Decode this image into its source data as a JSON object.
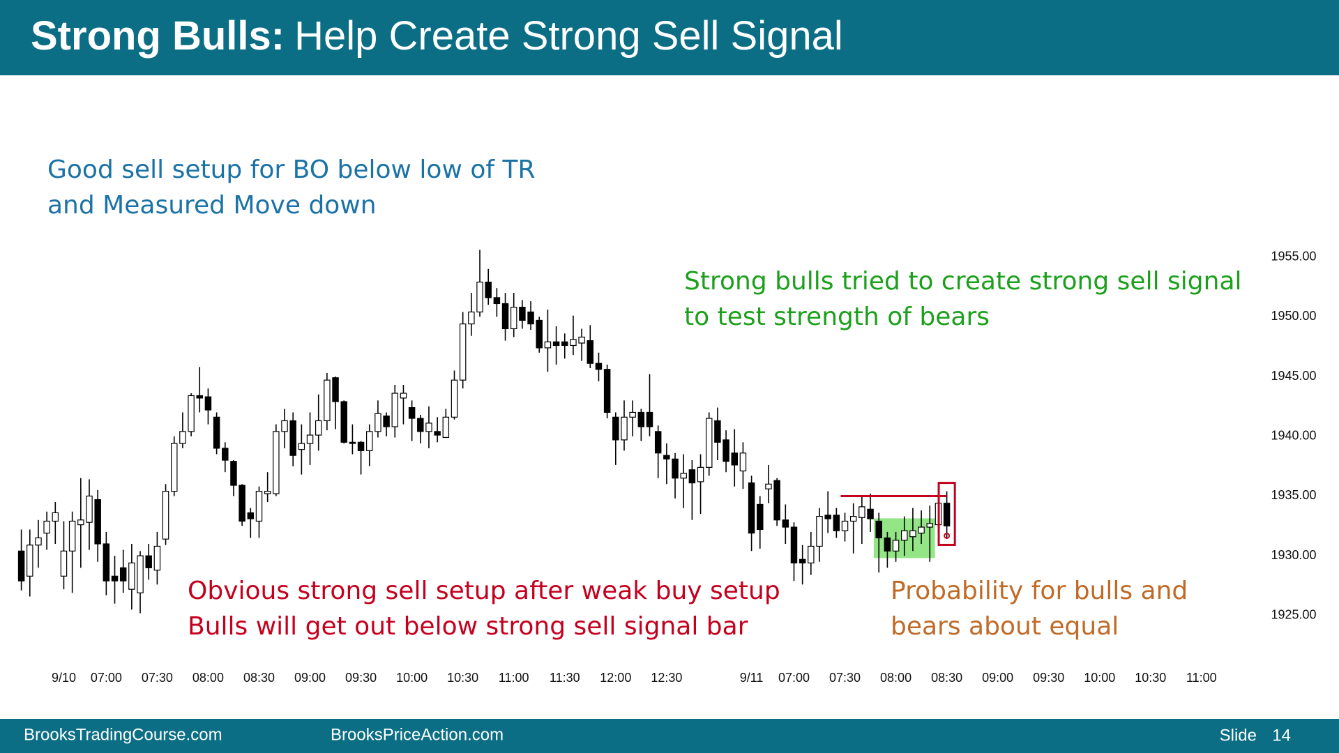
{
  "header": {
    "title_bold": "Strong Bulls:",
    "title": "Help Create Strong Sell Signal"
  },
  "footer": {
    "left": "BrooksTradingCourse.com",
    "center": "BrooksPriceAction.com",
    "slide_label": "Slide",
    "slide_number": "14"
  },
  "chart_data": {
    "type": "candlestick",
    "up_color": "#ffffff",
    "down_color": "#000000",
    "edge_color": "#000000",
    "x": [
      0,
      1,
      2,
      3,
      4,
      5,
      6,
      7,
      8,
      9,
      10,
      11,
      12,
      13,
      14,
      15,
      16,
      17,
      18,
      19,
      20,
      21,
      22,
      23,
      24,
      25,
      26,
      27,
      28,
      29,
      30,
      31,
      32,
      33,
      34,
      35,
      36,
      37,
      38,
      39,
      40,
      41,
      42,
      43,
      44,
      45,
      46,
      47,
      48,
      49,
      50,
      51,
      52,
      53,
      54,
      55,
      56,
      57,
      58,
      59,
      60,
      61,
      62,
      63,
      64,
      65,
      66,
      67,
      68,
      69,
      70,
      71,
      72,
      73,
      74,
      75,
      76,
      77,
      78,
      79,
      80,
      81,
      82,
      83,
      84,
      85,
      86,
      87,
      88,
      89,
      90,
      91,
      92,
      93,
      94,
      95,
      96,
      97,
      98,
      99,
      100,
      101,
      102,
      103,
      104,
      105,
      106,
      107,
      108,
      109
    ],
    "open": [
      1930.4,
      1928.3,
      1930.9,
      1931.9,
      1932.9,
      1928.3,
      1930.4,
      1932.6,
      1932.8,
      1934.7,
      1931,
      1928.3,
      1929,
      1927.2,
      1926.9,
      1930,
      1928.8,
      1931.4,
      1935.4,
      1939.4,
      1940.4,
      1943.4,
      1943.3,
      1941.6,
      1939,
      1937.9,
      1935.9,
      1933.6,
      1932.9,
      1935.2,
      1935.2,
      1940.4,
      1941.3,
      1938.9,
      1939.4,
      1940.1,
      1941.3,
      1944.9,
      1942.9,
      1939.5,
      1939.5,
      1938.8,
      1940.4,
      1941.7,
      1940.8,
      1943.2,
      1942.4,
      1941.5,
      1940.4,
      1940.4,
      1939.9,
      1941.6,
      1944.7,
      1949.4,
      1950.4,
      1952.9,
      1951.6,
      1951.1,
      1949,
      1950.8,
      1950.4,
      1949.7,
      1947.4,
      1947.9,
      1947.9,
      1947.6,
      1947.8,
      1948,
      1946.1,
      1945.6,
      1941.6,
      1939.7,
      1941.6,
      1942,
      1942,
      1940.4,
      1938.4,
      1938.1,
      1936.5,
      1937.2,
      1936.2,
      1937.4,
      1941.3,
      1939.7,
      1938.6,
      1937.1,
      1936.1,
      1934.3,
      1935.6,
      1936.3,
      1933,
      1932.4,
      1929.7,
      1929.4,
      1930.8,
      1933.4,
      1933.4,
      1932.1,
      1932.9,
      1933.2,
      1933.9,
      1932.9,
      1931.5,
      1930.4,
      1931.3,
      1931.6,
      1931.9,
      1932.4,
      1932.6,
      1934.4
    ],
    "high": [
      1932.2,
      1932.2,
      1933,
      1933.7,
      1934.5,
      1932.9,
      1933.7,
      1936.5,
      1936.4,
      1935.5,
      1932,
      1930,
      1930.5,
      1931,
      1930.4,
      1931,
      1932,
      1936,
      1940,
      1942,
      1943.6,
      1945.8,
      1944,
      1942,
      1939.5,
      1938,
      1936,
      1934,
      1935.8,
      1937,
      1941,
      1942.3,
      1942,
      1941,
      1942,
      1943.5,
      1945.3,
      1945,
      1943,
      1941,
      1939.6,
      1941,
      1943,
      1942,
      1944.3,
      1944.3,
      1943,
      1941.8,
      1942.5,
      1941.6,
      1942.3,
      1945.5,
      1950.4,
      1952,
      1955.6,
      1954,
      1952.4,
      1952,
      1952,
      1951.4,
      1951.3,
      1950,
      1950.6,
      1949.2,
      1948.6,
      1950.1,
      1949,
      1949.3,
      1947,
      1946,
      1942,
      1943,
      1943,
      1942.3,
      1945.2,
      1940.9,
      1939.4,
      1938.6,
      1938.5,
      1938,
      1938.5,
      1942,
      1942.4,
      1940.5,
      1940.6,
      1939.5,
      1936.7,
      1935,
      1937.6,
      1936.5,
      1934.3,
      1932.8,
      1930.9,
      1932,
      1934,
      1935.4,
      1934,
      1933.6,
      1934.4,
      1935,
      1935.2,
      1933.6,
      1932,
      1932,
      1933.3,
      1934,
      1933.8,
      1934.2,
      1935,
      1935.4
    ],
    "low": [
      1927.1,
      1926.6,
      1929,
      1930.5,
      1931,
      1927.2,
      1926.9,
      1929,
      1930.5,
      1929.5,
      1926.7,
      1926,
      1926.9,
      1925.5,
      1925.2,
      1928,
      1927.6,
      1930.9,
      1935,
      1939,
      1940,
      1942,
      1941,
      1938.5,
      1937,
      1935,
      1932.5,
      1931.5,
      1931.5,
      1934.5,
      1935,
      1939,
      1937.5,
      1936.8,
      1937.6,
      1938.8,
      1940.5,
      1940.6,
      1939.4,
      1938.5,
      1936.8,
      1937.5,
      1939.9,
      1940,
      1939.9,
      1941,
      1939.6,
      1939.4,
      1939,
      1939.5,
      1939.9,
      1941.4,
      1944,
      1948.4,
      1950,
      1951,
      1950,
      1948,
      1948.3,
      1949,
      1948.9,
      1947,
      1945.4,
      1946,
      1946.5,
      1946.8,
      1946.3,
      1945.7,
      1944.6,
      1941.5,
      1937.6,
      1938.8,
      1940,
      1939.6,
      1940,
      1936.5,
      1936,
      1934.8,
      1934,
      1933,
      1933.5,
      1936.7,
      1938,
      1937,
      1935.8,
      1935.6,
      1930.4,
      1930.6,
      1934.4,
      1932.5,
      1931,
      1927.9,
      1927.6,
      1928.4,
      1929.5,
      1931.9,
      1931.5,
      1931.2,
      1930.2,
      1931,
      1932,
      1928.6,
      1929,
      1929.5,
      1930,
      1930.4,
      1931,
      1929.5,
      1931.8,
      1931.5
    ],
    "close": [
      1927.9,
      1930.9,
      1931.5,
      1932.9,
      1933.6,
      1930.4,
      1932.9,
      1933,
      1935,
      1931,
      1927.9,
      1927.9,
      1927.9,
      1929.4,
      1930,
      1929,
      1930.8,
      1935.4,
      1939.4,
      1940.4,
      1943.4,
      1943.2,
      1942.2,
      1939,
      1938,
      1935.9,
      1932.9,
      1933.1,
      1935.4,
      1935.4,
      1940.4,
      1941.3,
      1938.4,
      1939.4,
      1940.1,
      1941.3,
      1944.7,
      1942.9,
      1939.5,
      1939.4,
      1938.8,
      1940.4,
      1941.9,
      1940.8,
      1943.6,
      1943.6,
      1941.5,
      1940.4,
      1941.1,
      1940.1,
      1941.6,
      1944.7,
      1949.4,
      1950.4,
      1952.9,
      1951.6,
      1951.1,
      1949,
      1950.8,
      1949.7,
      1949.4,
      1947.4,
      1947.9,
      1947.6,
      1947.6,
      1948.1,
      1948.3,
      1946.1,
      1945.6,
      1942,
      1939.7,
      1941.6,
      1942,
      1940.8,
      1940.8,
      1938.6,
      1938.1,
      1936.5,
      1936.9,
      1936.1,
      1937.4,
      1941.5,
      1939.5,
      1937.9,
      1937.6,
      1938.6,
      1931.9,
      1932.2,
      1936,
      1933,
      1932.4,
      1929.4,
      1929.4,
      1930.8,
      1933.3,
      1933.1,
      1932.1,
      1932.9,
      1933.3,
      1934.1,
      1933.1,
      1931.5,
      1930.4,
      1931.3,
      1932.1,
      1932.1,
      1932.4,
      1932.7,
      1934.4,
      1932.5
    ],
    "xlim": [
      0,
      141
    ],
    "xticks": [
      {
        "value": 5,
        "label": "9/10"
      },
      {
        "value": 10,
        "label": "07:00"
      },
      {
        "value": 16,
        "label": "07:30"
      },
      {
        "value": 22,
        "label": "08:00"
      },
      {
        "value": 28,
        "label": "08:30"
      },
      {
        "value": 34,
        "label": "09:00"
      },
      {
        "value": 40,
        "label": "09:30"
      },
      {
        "value": 46,
        "label": "10:00"
      },
      {
        "value": 52,
        "label": "10:30"
      },
      {
        "value": 58,
        "label": "11:00"
      },
      {
        "value": 64,
        "label": "11:30"
      },
      {
        "value": 70,
        "label": "12:00"
      },
      {
        "value": 76,
        "label": "12:30"
      },
      {
        "value": 86,
        "label": "9/11"
      },
      {
        "value": 91,
        "label": "07:00"
      },
      {
        "value": 97,
        "label": "07:30"
      },
      {
        "value": 103,
        "label": "08:00"
      },
      {
        "value": 109,
        "label": "08:30"
      },
      {
        "value": 115,
        "label": "09:00"
      },
      {
        "value": 121,
        "label": "09:30"
      },
      {
        "value": 127,
        "label": "10:00"
      },
      {
        "value": 133,
        "label": "10:30"
      },
      {
        "value": 139,
        "label": "11:00"
      }
    ],
    "ylim": [
      1925,
      1955
    ],
    "yticks": [
      {
        "value": 1955,
        "label": "1955.00"
      },
      {
        "value": 1950,
        "label": "1950.00"
      },
      {
        "value": 1945,
        "label": "1945.00"
      },
      {
        "value": 1940,
        "label": "1940.00"
      },
      {
        "value": 1935,
        "label": "1935.00"
      },
      {
        "value": 1930,
        "label": "1930.00"
      },
      {
        "value": 1925,
        "label": "1925.00"
      }
    ],
    "grid": false,
    "annotations": [
      {
        "lines": [
          "Good sell setup for BO below low of TR",
          "and Measured Move down"
        ],
        "color": "#1a72a6"
      },
      {
        "lines": [
          "Strong bulls tried to create strong sell signal",
          "to test strength of bears"
        ],
        "color": "#1ca01c"
      },
      {
        "lines": [
          "Obvious strong sell setup after weak buy setup",
          "Bulls will get out below strong sell signal bar"
        ],
        "color": "#c4001e"
      },
      {
        "lines": [
          "Probability for bulls and",
          "bears about equal"
        ],
        "color": "#c06a28"
      }
    ],
    "highlight_color": "#6fdc5c",
    "signal_color": "#c4001e"
  }
}
